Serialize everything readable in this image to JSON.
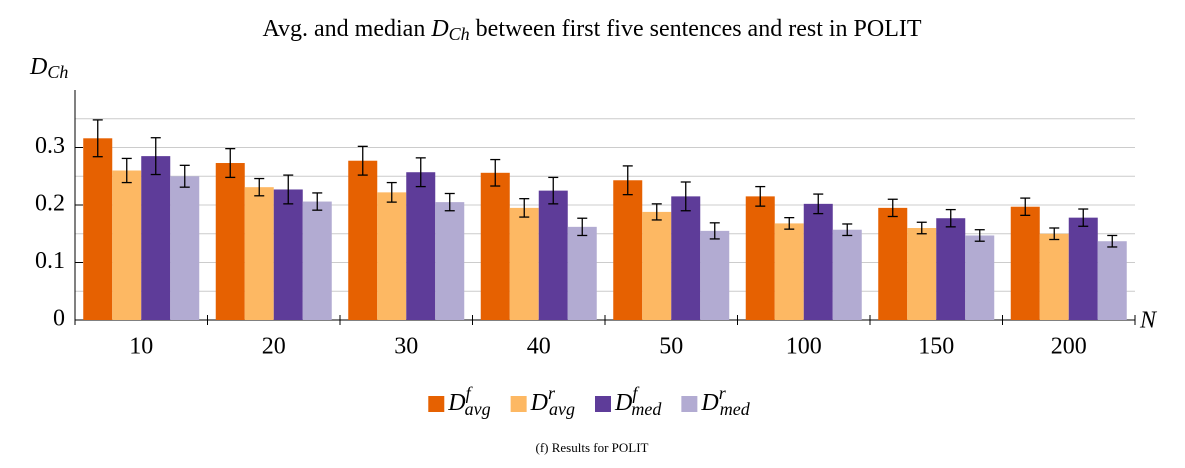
{
  "chart_data": {
    "type": "bar",
    "title": [
      "Avg. and median ",
      "D",
      "Ch",
      " between first five sentences and rest in POLIT"
    ],
    "ylabel": "D",
    "ylabel_sub": "Ch",
    "xlabel": "N",
    "caption": "(f) Results for POLIT",
    "categories": [
      "10",
      "20",
      "30",
      "40",
      "50",
      "100",
      "150",
      "200"
    ],
    "ylim": [
      0,
      0.4
    ],
    "yticks": [
      0,
      0.1,
      0.2,
      0.3
    ],
    "yminor": [
      0.05,
      0.15,
      0.25,
      0.35
    ],
    "grid": true,
    "series": [
      {
        "name": "D",
        "superscript": "f",
        "subscript": "avg",
        "color": "#e66101",
        "values": [
          0.316,
          0.273,
          0.277,
          0.256,
          0.243,
          0.215,
          0.195,
          0.197
        ],
        "errors": [
          0.032,
          0.025,
          0.025,
          0.023,
          0.025,
          0.017,
          0.015,
          0.015
        ]
      },
      {
        "name": "D",
        "superscript": "r",
        "subscript": "avg",
        "color": "#fdb863",
        "values": [
          0.26,
          0.231,
          0.222,
          0.195,
          0.188,
          0.168,
          0.16,
          0.15
        ],
        "errors": [
          0.021,
          0.015,
          0.017,
          0.016,
          0.014,
          0.01,
          0.01,
          0.01
        ]
      },
      {
        "name": "D",
        "superscript": "f",
        "subscript": "med",
        "color": "#5e3c99",
        "values": [
          0.285,
          0.227,
          0.257,
          0.225,
          0.215,
          0.202,
          0.177,
          0.178
        ],
        "errors": [
          0.032,
          0.025,
          0.025,
          0.023,
          0.025,
          0.017,
          0.015,
          0.015
        ]
      },
      {
        "name": "D",
        "superscript": "r",
        "subscript": "med",
        "color": "#b2abd2",
        "values": [
          0.25,
          0.206,
          0.205,
          0.162,
          0.155,
          0.157,
          0.147,
          0.137
        ],
        "errors": [
          0.019,
          0.015,
          0.015,
          0.015,
          0.014,
          0.01,
          0.01,
          0.01
        ]
      }
    ]
  }
}
